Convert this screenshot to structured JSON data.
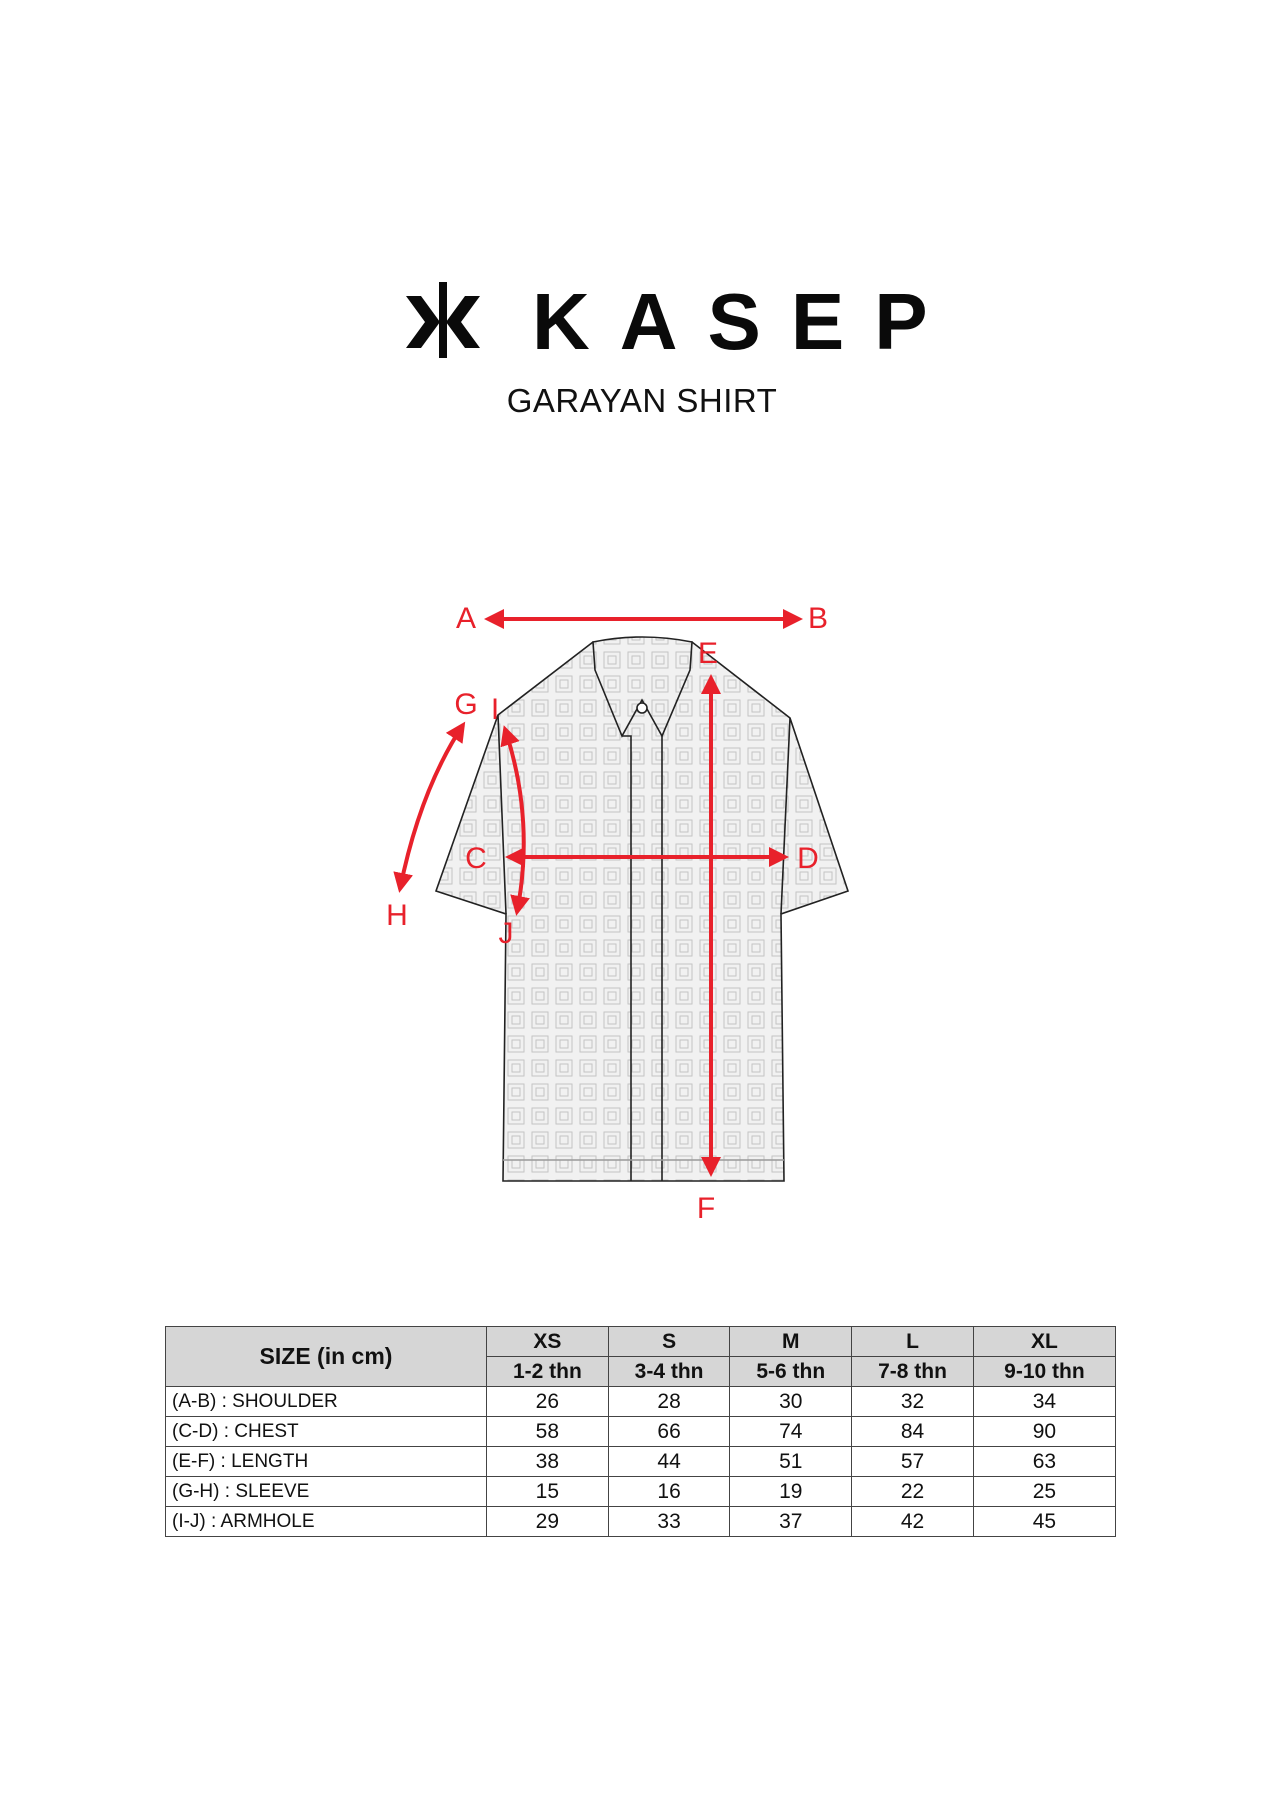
{
  "brand": {
    "name": "KASEP",
    "logo_icon": "kasep-star-icon"
  },
  "product": {
    "title": "GARAYAN SHIRT"
  },
  "diagram": {
    "labels": {
      "a": "A",
      "b": "B",
      "c": "C",
      "d": "D",
      "e": "E",
      "f": "F",
      "g": "G",
      "h": "H",
      "i": "I",
      "j": "J"
    },
    "arrow_color": "#e8212b"
  },
  "size_table": {
    "header": "SIZE (in cm)",
    "sizes": [
      {
        "size": "XS",
        "age": "1-2 thn"
      },
      {
        "size": "S",
        "age": "3-4 thn"
      },
      {
        "size": "M",
        "age": "5-6 thn"
      },
      {
        "size": "L",
        "age": "7-8 thn"
      },
      {
        "size": "XL",
        "age": "9-10 thn"
      }
    ],
    "rows": [
      {
        "label": "(A-B) : SHOULDER",
        "values": [
          "26",
          "28",
          "30",
          "32",
          "34"
        ]
      },
      {
        "label": "(C-D) : CHEST",
        "values": [
          "58",
          "66",
          "74",
          "84",
          "90"
        ]
      },
      {
        "label": "(E-F) : LENGTH",
        "values": [
          "38",
          "44",
          "51",
          "57",
          "63"
        ]
      },
      {
        "label": "(G-H) : SLEEVE",
        "values": [
          "15",
          "16",
          "19",
          "22",
          "25"
        ]
      },
      {
        "label": "(I-J) : ARMHOLE",
        "values": [
          "29",
          "33",
          "37",
          "42",
          "45"
        ]
      }
    ]
  }
}
